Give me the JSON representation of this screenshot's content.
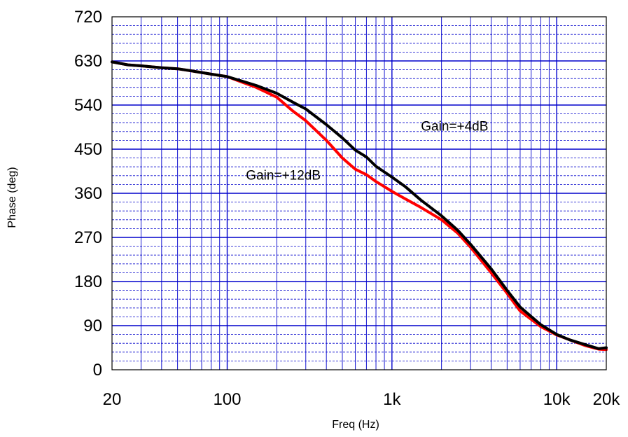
{
  "chart_data": {
    "type": "line",
    "title": "",
    "xlabel": "Freq (Hz)",
    "ylabel": "Phase (deg)",
    "xscale": "log",
    "xlim": [
      20,
      20000
    ],
    "ylim": [
      0,
      720
    ],
    "x_ticks": [
      {
        "value": 20,
        "label": "20"
      },
      {
        "value": 100,
        "label": "100"
      },
      {
        "value": 1000,
        "label": "1k"
      },
      {
        "value": 10000,
        "label": "10k"
      },
      {
        "value": 20000,
        "label": "20k"
      }
    ],
    "y_ticks": [
      {
        "value": 0,
        "label": "0"
      },
      {
        "value": 90,
        "label": "90"
      },
      {
        "value": 180,
        "label": "180"
      },
      {
        "value": 270,
        "label": "270"
      },
      {
        "value": 360,
        "label": "360"
      },
      {
        "value": 450,
        "label": "450"
      },
      {
        "value": 540,
        "label": "540"
      },
      {
        "value": 630,
        "label": "630"
      },
      {
        "value": 720,
        "label": "720"
      }
    ],
    "grid": true,
    "grid_color": "#0000cc",
    "series": [
      {
        "color": "#ff0000",
        "x": [
          20,
          25,
          30,
          40,
          50,
          60,
          80,
          100,
          120,
          150,
          200,
          250,
          300,
          400,
          500,
          600,
          700,
          800,
          1000,
          1200,
          1500,
          2000,
          2500,
          3000,
          4000,
          5000,
          6000,
          8000,
          10000,
          12000,
          15000,
          18000,
          20000
        ],
        "y": [
          628,
          622,
          620,
          616,
          614,
          610,
          603,
          598,
          588,
          576,
          556,
          528,
          508,
          468,
          432,
          409,
          398,
          384,
          364,
          349,
          331,
          306,
          279,
          250,
          198,
          156,
          120,
          88,
          71,
          61,
          49,
          42,
          41
        ]
      },
      {
        "color": "#000000",
        "x": [
          20,
          25,
          30,
          40,
          50,
          60,
          80,
          100,
          120,
          150,
          200,
          250,
          300,
          400,
          500,
          600,
          700,
          800,
          1000,
          1200,
          1500,
          2000,
          2500,
          3000,
          4000,
          5000,
          6000,
          8000,
          10000,
          12000,
          15000,
          18000,
          20000
        ],
        "y": [
          628,
          622,
          620,
          616,
          614,
          610,
          603,
          598,
          590,
          580,
          564,
          546,
          532,
          500,
          473,
          448,
          434,
          415,
          393,
          374,
          346,
          314,
          285,
          256,
          206,
          162,
          128,
          92,
          72,
          61,
          51,
          43,
          45
        ]
      }
    ],
    "annotations": [
      {
        "text": "Gain=+4dB",
        "x": 1500,
        "y": 488
      },
      {
        "text": "Gain=+12dB",
        "x": 130,
        "y": 388
      }
    ]
  }
}
